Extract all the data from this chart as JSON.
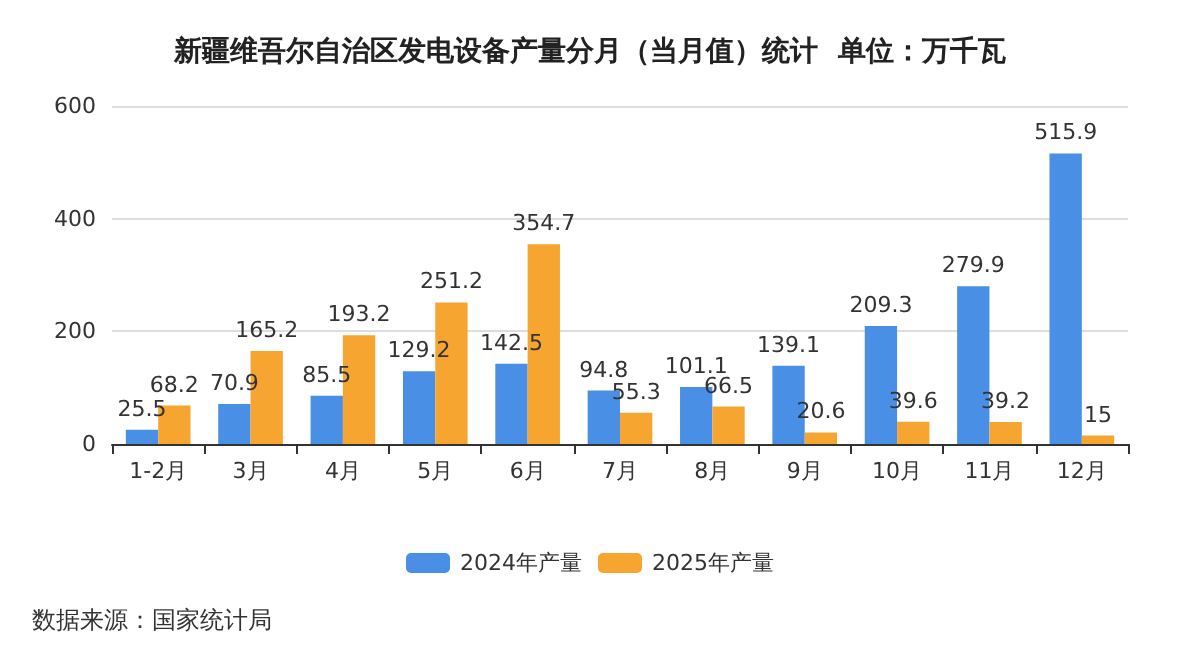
{
  "chart_data": {
    "type": "bar",
    "title": "新疆维吾尔自治区发电设备产量分月（当月值）统计  单位：万千瓦",
    "categories": [
      "1-2月",
      "3月",
      "4月",
      "5月",
      "6月",
      "7月",
      "8月",
      "9月",
      "10月",
      "11月",
      "12月"
    ],
    "series": [
      {
        "name": "2024年产量",
        "color": "#4a8fe6",
        "values": [
          25.5,
          70.9,
          85.5,
          129.2,
          142.5,
          94.8,
          101.1,
          139.1,
          209.3,
          279.9,
          515.9
        ]
      },
      {
        "name": "2025年产量",
        "color": "#f7a531",
        "values": [
          68.2,
          165.2,
          193.2,
          251.2,
          354.7,
          55.3,
          66.5,
          20.6,
          39.6,
          39.2,
          15
        ]
      }
    ],
    "ylim": [
      0,
      600
    ],
    "yticks": [
      0,
      200,
      400,
      600
    ],
    "grid": "y",
    "legend": "bottom",
    "data_labels": true,
    "annotations": [
      "数据来源：国家统计局"
    ]
  }
}
